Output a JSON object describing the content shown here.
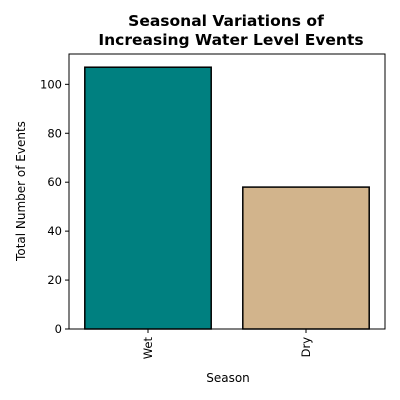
{
  "chart_data": {
    "type": "bar",
    "title_lines": [
      "Seasonal Variations of",
      "Increasing Water Level Events"
    ],
    "xlabel": "Season",
    "ylabel": "Total Number of Events",
    "categories": [
      "Wet",
      "Dry"
    ],
    "values": [
      107,
      58
    ],
    "colors": [
      "#008080",
      "#d2b48c"
    ],
    "edge_color": "#000000",
    "ylim": [
      0,
      112.4
    ],
    "yticks": [
      0,
      20,
      40,
      60,
      80,
      100
    ],
    "xtick_rotation": "vertical",
    "grid": false,
    "legend": "none"
  }
}
